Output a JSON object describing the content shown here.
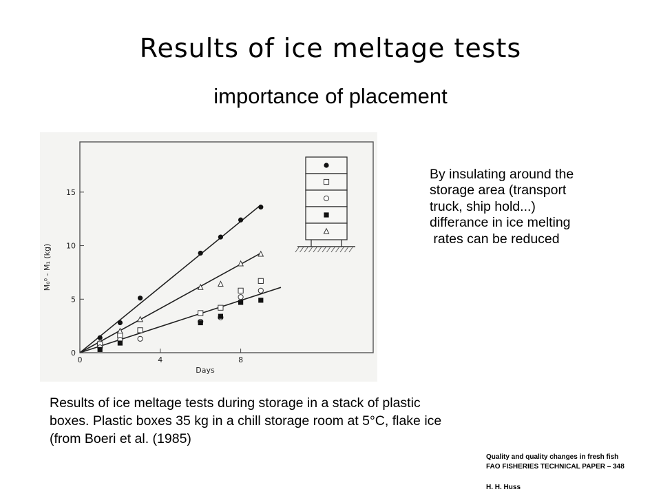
{
  "slide": {
    "title": "Results of ice meltage tests",
    "subtitle": "importance of placement"
  },
  "note": {
    "lines": [
      "By insulating around the",
      "storage area (transport",
      "truck, ship hold...)",
      "differance in ice melting",
      " rates can be reduced"
    ]
  },
  "caption": {
    "lines": [
      "Results of ice meltage tests during storage in a stack of plastic",
      "boxes. Plastic boxes 35 kg in a chill storage room at 5°C, flake ice",
      "(from Boeri et al. (1985)"
    ]
  },
  "reference": {
    "line1": "Quality and quality changes in fresh fish",
    "line2": "FAO FISHERIES TECHNICAL PAPER – 348",
    "line3": "H. H. Huss"
  },
  "chart_data": {
    "type": "scatter",
    "xlabel": "Days",
    "ylabel": "M₀⁰ - M₁ (kg)",
    "xlim": [
      0,
      10
    ],
    "ylim": [
      0,
      17.5
    ],
    "x_ticks": [
      "0",
      "4",
      "8"
    ],
    "y_ticks": [
      "0",
      "5",
      "10",
      "15"
    ],
    "grid": false,
    "legend": "stacked-box diagram at right: filled circle top, open square second, open circle third, filled square fourth, open triangle bottom",
    "series": [
      {
        "marker": "filled-circle",
        "x": [
          1,
          2,
          3,
          6,
          7,
          8,
          9
        ],
        "y": [
          1.4,
          2.8,
          5.1,
          9.3,
          10.8,
          12.4,
          13.6
        ]
      },
      {
        "marker": "open-triangle",
        "x": [
          1,
          2,
          3,
          6,
          7,
          8,
          9
        ],
        "y": [
          1.0,
          2.0,
          3.1,
          6.1,
          6.4,
          8.3,
          9.2
        ]
      },
      {
        "marker": "open-square",
        "x": [
          1,
          2,
          3,
          6,
          7,
          8,
          9
        ],
        "y": [
          0.8,
          1.6,
          2.1,
          3.7,
          4.2,
          5.8,
          6.7
        ]
      },
      {
        "marker": "open-circle",
        "x": [
          1,
          2,
          3,
          6,
          7,
          8,
          9
        ],
        "y": [
          0.5,
          1.2,
          1.3,
          2.9,
          3.3,
          5.2,
          5.8
        ]
      },
      {
        "marker": "filled-square",
        "x": [
          1,
          2,
          6,
          7,
          8,
          9
        ],
        "y": [
          0.3,
          0.9,
          2.8,
          3.4,
          4.7,
          4.9
        ]
      }
    ],
    "fit_lines": [
      {
        "x": [
          0,
          9
        ],
        "y": [
          0,
          13.8
        ]
      },
      {
        "x": [
          0,
          9
        ],
        "y": [
          0,
          9.3
        ]
      },
      {
        "x": [
          0,
          10
        ],
        "y": [
          0,
          6.1
        ]
      }
    ],
    "box_markers": [
      "filled-circle",
      "open-square",
      "open-circle",
      "filled-square",
      "open-triangle"
    ]
  }
}
